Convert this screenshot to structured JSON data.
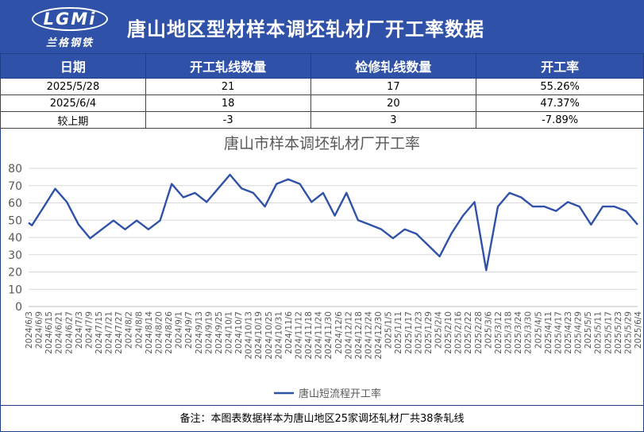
{
  "header": {
    "logo_text": "LGMi",
    "logo_sub": "兰格钢铁",
    "title": "唐山地区型材样本调坯轧材厂开工率数据"
  },
  "table": {
    "columns": [
      "日期",
      "开工轧线数量",
      "检修轧线数量",
      "开工率"
    ],
    "rows": [
      [
        "2025/5/28",
        "21",
        "17",
        "55.26%"
      ],
      [
        "2025/6/4",
        "18",
        "20",
        "47.37%"
      ],
      [
        "较上期",
        "-3",
        "3",
        "-7.89%"
      ]
    ]
  },
  "chart_data": {
    "type": "line",
    "title": "唐山市样本调坯轧材厂开工率",
    "ylim": [
      0,
      80
    ],
    "y_ticks": [
      "0",
      "10",
      "20",
      "30",
      "40",
      "50",
      "60",
      "70",
      "80"
    ],
    "grid": true,
    "legend_position": "bottom",
    "x_tick_labels": [
      "2024/6/3",
      "2024/6/9",
      "2024/6/15",
      "2024/6/21",
      "2024/6/27",
      "2024/7/3",
      "2024/7/9",
      "2024/7/15",
      "2024/7/21",
      "2024/7/27",
      "2024/8/2",
      "2024/8/8",
      "2024/8/14",
      "2024/8/20",
      "2024/8/26",
      "2024/9/1",
      "2024/9/7",
      "2024/9/13",
      "2024/9/19",
      "2024/9/25",
      "2024/10/1",
      "2024/10/7",
      "2024/10/13",
      "2024/10/19",
      "2024/10/25",
      "2024/10/31",
      "2024/11/6",
      "2024/11/12",
      "2024/11/18",
      "2024/11/24",
      "2024/11/30",
      "2024/12/6",
      "2024/12/12",
      "2024/12/18",
      "2024/12/24",
      "2024/12/30",
      "2025/1/5",
      "2025/1/11",
      "2025/1/17",
      "2025/1/23",
      "2025/1/29",
      "2025/2/4",
      "2025/2/10",
      "2025/2/16",
      "2025/2/22",
      "2025/2/28",
      "2025/3/6",
      "2025/3/12",
      "2025/3/18",
      "2025/3/24",
      "2025/3/30",
      "2025/4/5",
      "2025/4/11",
      "2025/4/17",
      "2025/4/23",
      "2025/4/29",
      "2025/5/5",
      "2025/5/11",
      "2025/5/17",
      "2025/5/23",
      "2025/5/29",
      "2025/6/4"
    ],
    "series": [
      {
        "name": "唐山短流程开工率",
        "color": "#2f52a8",
        "points": [
          [
            "2024/6/3",
            48.5
          ],
          [
            "2024/6/5",
            47.0
          ],
          [
            "2024/6/12",
            57.5
          ],
          [
            "2024/6/19",
            68.2
          ],
          [
            "2024/6/26",
            60.5
          ],
          [
            "2024/7/3",
            47.5
          ],
          [
            "2024/7/10",
            39.5
          ],
          [
            "2024/7/17",
            44.7
          ],
          [
            "2024/7/24",
            49.8
          ],
          [
            "2024/7/31",
            44.7
          ],
          [
            "2024/8/7",
            49.8
          ],
          [
            "2024/8/14",
            44.7
          ],
          [
            "2024/8/21",
            49.8
          ],
          [
            "2024/8/28",
            71.0
          ],
          [
            "2024/9/4",
            63.2
          ],
          [
            "2024/9/11",
            65.8
          ],
          [
            "2024/9/18",
            60.5
          ],
          [
            "2024/9/25",
            68.4
          ],
          [
            "2024/10/2",
            76.3
          ],
          [
            "2024/10/9",
            68.4
          ],
          [
            "2024/10/16",
            65.8
          ],
          [
            "2024/10/23",
            57.9
          ],
          [
            "2024/10/30",
            71.0
          ],
          [
            "2024/11/6",
            73.7
          ],
          [
            "2024/11/13",
            71.0
          ],
          [
            "2024/11/20",
            60.5
          ],
          [
            "2024/11/27",
            65.8
          ],
          [
            "2024/12/4",
            52.6
          ],
          [
            "2024/12/11",
            65.8
          ],
          [
            "2024/12/18",
            50.0
          ],
          [
            "2024/12/25",
            47.4
          ],
          [
            "2025/1/1",
            44.7
          ],
          [
            "2025/1/8",
            39.5
          ],
          [
            "2025/1/15",
            44.7
          ],
          [
            "2025/1/22",
            42.1
          ],
          [
            "2025/1/29",
            35.6
          ],
          [
            "2025/2/5",
            29.0
          ],
          [
            "2025/2/12",
            42.1
          ],
          [
            "2025/2/19",
            52.6
          ],
          [
            "2025/2/26",
            60.5
          ],
          [
            "2025/3/5",
            21.0
          ],
          [
            "2025/3/12",
            57.9
          ],
          [
            "2025/3/19",
            65.8
          ],
          [
            "2025/3/26",
            63.2
          ],
          [
            "2025/4/2",
            57.9
          ],
          [
            "2025/4/9",
            57.9
          ],
          [
            "2025/4/16",
            55.3
          ],
          [
            "2025/4/23",
            60.5
          ],
          [
            "2025/4/30",
            57.9
          ],
          [
            "2025/5/7",
            47.4
          ],
          [
            "2025/5/14",
            57.9
          ],
          [
            "2025/5/21",
            57.9
          ],
          [
            "2025/5/28",
            55.3
          ],
          [
            "2025/6/4",
            47.4
          ]
        ]
      }
    ]
  },
  "footer": {
    "note": "备注：本图表数据样本为唐山地区25家调坯轧材厂共38条轧线"
  }
}
